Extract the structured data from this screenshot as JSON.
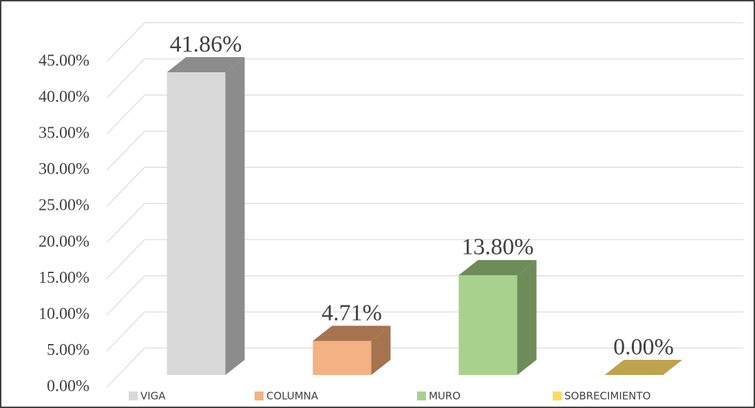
{
  "chart_data": {
    "type": "bar3d",
    "categories": [
      "VIGA",
      "COLUMNA",
      "MURO",
      "SOBRECIMIENTO"
    ],
    "values": [
      41.86,
      4.71,
      13.8,
      0.0
    ],
    "value_labels": [
      "41.86%",
      "4.71%",
      "13.80%",
      "0.00%"
    ],
    "colors": [
      "#d9d9d9",
      "#f4b183",
      "#a9d18e",
      "#ffd966"
    ],
    "side_colors": [
      "#8c8c8c",
      "#a5744f",
      "#6e8c5a",
      "#bfa34c"
    ],
    "ylim": [
      0,
      45
    ],
    "yticks": [
      {
        "value": 0,
        "label": "0.00%"
      },
      {
        "value": 5,
        "label": "5.00%"
      },
      {
        "value": 10,
        "label": "10.00%"
      },
      {
        "value": 15,
        "label": "15.00%"
      },
      {
        "value": 20,
        "label": "20.00%"
      },
      {
        "value": 25,
        "label": "25.00%"
      },
      {
        "value": 30,
        "label": "30.00%"
      },
      {
        "value": 35,
        "label": "35.00%"
      },
      {
        "value": 40,
        "label": "40.00%"
      },
      {
        "value": 45,
        "label": "45.00%"
      }
    ],
    "grid": true,
    "legend": "bottom"
  }
}
